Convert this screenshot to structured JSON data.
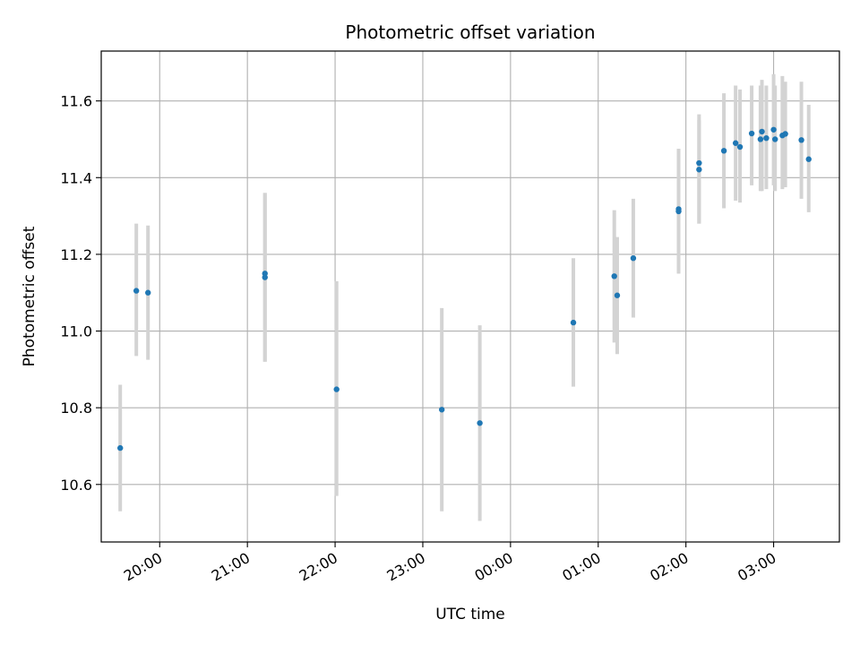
{
  "chart_data": {
    "type": "scatter",
    "title": "Photometric offset variation",
    "xlabel": "UTC time",
    "ylabel": "Photometric offset",
    "x_axis_kind": "time",
    "x_start_date": "2023-01-01",
    "xlim": [
      "2023-01-01 19:20",
      "2023-01-02 03:45"
    ],
    "ylim": [
      10.45,
      11.73
    ],
    "grid": true,
    "x_ticks": [
      {
        "time": "2023-01-01 20:00",
        "label": "20:00"
      },
      {
        "time": "2023-01-01 21:00",
        "label": "21:00"
      },
      {
        "time": "2023-01-01 22:00",
        "label": "22:00"
      },
      {
        "time": "2023-01-01 23:00",
        "label": "23:00"
      },
      {
        "time": "2023-01-02 00:00",
        "label": "00:00"
      },
      {
        "time": "2023-01-02 01:00",
        "label": "01:00"
      },
      {
        "time": "2023-01-02 02:00",
        "label": "02:00"
      },
      {
        "time": "2023-01-02 03:00",
        "label": "03:00"
      }
    ],
    "y_ticks": [
      {
        "value": 10.6,
        "label": "10.6"
      },
      {
        "value": 10.8,
        "label": "10.8"
      },
      {
        "value": 11.0,
        "label": "11.0"
      },
      {
        "value": 11.2,
        "label": "11.2"
      },
      {
        "value": 11.4,
        "label": "11.4"
      },
      {
        "value": 11.6,
        "label": "11.6"
      }
    ],
    "colors": {
      "point": "#1f77b4",
      "errorbar": "#d3d3d3",
      "grid": "#b0b0b0"
    },
    "points": [
      {
        "t": "2023-01-01 19:33",
        "y": 10.695,
        "ylo": 10.53,
        "yhi": 10.86
      },
      {
        "t": "2023-01-01 19:44",
        "y": 11.105,
        "ylo": 10.935,
        "yhi": 11.28
      },
      {
        "t": "2023-01-01 19:52",
        "y": 11.1,
        "ylo": 10.925,
        "yhi": 11.275
      },
      {
        "t": "2023-01-01 21:12",
        "y": 11.15,
        "ylo": 10.92,
        "yhi": 11.36
      },
      {
        "t": "2023-01-01 21:12",
        "y": 11.14,
        "ylo": 10.92,
        "yhi": 11.36
      },
      {
        "t": "2023-01-01 22:01",
        "y": 10.848,
        "ylo": 10.57,
        "yhi": 11.13
      },
      {
        "t": "2023-01-01 23:13",
        "y": 10.795,
        "ylo": 10.53,
        "yhi": 11.06
      },
      {
        "t": "2023-01-01 23:39",
        "y": 10.76,
        "ylo": 10.505,
        "yhi": 11.015
      },
      {
        "t": "2023-01-02 00:43",
        "y": 11.022,
        "ylo": 10.855,
        "yhi": 11.19
      },
      {
        "t": "2023-01-02 01:11",
        "y": 11.143,
        "ylo": 10.97,
        "yhi": 11.315
      },
      {
        "t": "2023-01-02 01:13",
        "y": 11.093,
        "ylo": 10.94,
        "yhi": 11.245
      },
      {
        "t": "2023-01-02 01:24",
        "y": 11.19,
        "ylo": 11.035,
        "yhi": 11.345
      },
      {
        "t": "2023-01-02 01:55",
        "y": 11.318,
        "ylo": 11.15,
        "yhi": 11.475
      },
      {
        "t": "2023-01-02 01:55",
        "y": 11.312,
        "ylo": 11.15,
        "yhi": 11.475
      },
      {
        "t": "2023-01-02 02:09",
        "y": 11.438,
        "ylo": 11.28,
        "yhi": 11.565
      },
      {
        "t": "2023-01-02 02:09",
        "y": 11.421,
        "ylo": 11.28,
        "yhi": 11.55
      },
      {
        "t": "2023-01-02 02:26",
        "y": 11.47,
        "ylo": 11.32,
        "yhi": 11.62
      },
      {
        "t": "2023-01-02 02:34",
        "y": 11.49,
        "ylo": 11.34,
        "yhi": 11.64
      },
      {
        "t": "2023-01-02 02:37",
        "y": 11.48,
        "ylo": 11.335,
        "yhi": 11.63
      },
      {
        "t": "2023-01-02 02:45",
        "y": 11.515,
        "ylo": 11.38,
        "yhi": 11.64
      },
      {
        "t": "2023-01-02 02:51",
        "y": 11.5,
        "ylo": 11.365,
        "yhi": 11.64
      },
      {
        "t": "2023-01-02 02:52",
        "y": 11.52,
        "ylo": 11.365,
        "yhi": 11.655
      },
      {
        "t": "2023-01-02 02:55",
        "y": 11.503,
        "ylo": 11.37,
        "yhi": 11.64
      },
      {
        "t": "2023-01-02 03:00",
        "y": 11.525,
        "ylo": 11.38,
        "yhi": 11.67
      },
      {
        "t": "2023-01-02 03:01",
        "y": 11.5,
        "ylo": 11.365,
        "yhi": 11.64
      },
      {
        "t": "2023-01-02 03:06",
        "y": 11.51,
        "ylo": 11.37,
        "yhi": 11.665
      },
      {
        "t": "2023-01-02 03:08",
        "y": 11.514,
        "ylo": 11.375,
        "yhi": 11.65
      },
      {
        "t": "2023-01-02 03:19",
        "y": 11.498,
        "ylo": 11.345,
        "yhi": 11.65
      },
      {
        "t": "2023-01-02 03:24",
        "y": 11.448,
        "ylo": 11.31,
        "yhi": 11.59
      }
    ]
  }
}
